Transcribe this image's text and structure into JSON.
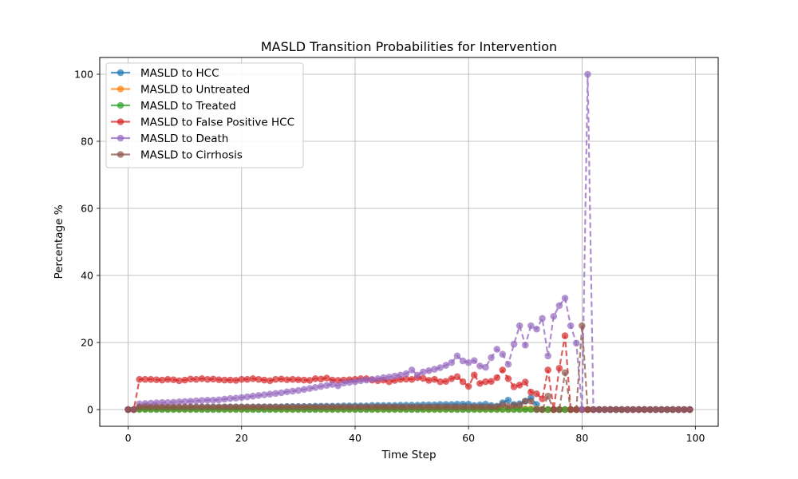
{
  "chart_data": {
    "type": "line",
    "title": "MASLD Transition Probabilities for Intervention",
    "xlabel": "Time Step",
    "ylabel": "Percentage %",
    "xlim": [
      -5,
      104
    ],
    "ylim": [
      -5,
      105
    ],
    "xticks": [
      0,
      20,
      40,
      60,
      80,
      100
    ],
    "yticks": [
      0,
      20,
      40,
      60,
      80,
      100
    ],
    "grid": true,
    "legend_position": "top-left",
    "x": [
      0,
      1,
      2,
      3,
      4,
      5,
      6,
      7,
      8,
      9,
      10,
      11,
      12,
      13,
      14,
      15,
      16,
      17,
      18,
      19,
      20,
      21,
      22,
      23,
      24,
      25,
      26,
      27,
      28,
      29,
      30,
      31,
      32,
      33,
      34,
      35,
      36,
      37,
      38,
      39,
      40,
      41,
      42,
      43,
      44,
      45,
      46,
      47,
      48,
      49,
      50,
      51,
      52,
      53,
      54,
      55,
      56,
      57,
      58,
      59,
      60,
      61,
      62,
      63,
      64,
      65,
      66,
      67,
      68,
      69,
      70,
      71,
      72,
      73,
      74,
      75,
      76,
      77,
      78,
      79,
      80,
      81,
      82,
      83,
      84,
      85,
      86,
      87,
      88,
      89,
      90,
      91,
      92,
      93,
      94,
      95,
      96,
      97,
      98,
      99
    ],
    "series": [
      {
        "name": "MASLD to HCC",
        "color": "#1f77b4",
        "values": [
          0,
          0,
          0.4,
          0.4,
          0.5,
          0.5,
          0.5,
          0.5,
          0.5,
          0.5,
          0.5,
          0.6,
          0.6,
          0.6,
          0.6,
          0.6,
          0.6,
          0.7,
          0.7,
          0.7,
          0.7,
          0.7,
          0.7,
          0.8,
          0.8,
          0.8,
          0.8,
          0.8,
          0.9,
          0.9,
          0.9,
          0.9,
          0.9,
          1.0,
          1.0,
          1.0,
          1.0,
          1.0,
          1.1,
          1.1,
          1.1,
          1.1,
          1.1,
          1.2,
          1.2,
          1.2,
          1.2,
          1.2,
          1.3,
          1.3,
          1.3,
          1.3,
          1.4,
          1.4,
          1.4,
          1.5,
          1.5,
          1.5,
          1.6,
          1.6,
          1.6,
          1.2,
          1.4,
          1.6,
          1.2,
          1.0,
          2.0,
          2.8,
          1.5,
          1.7,
          2.5,
          3.5,
          1.5,
          0,
          0,
          0,
          0,
          0,
          0,
          0,
          0,
          0,
          0,
          0,
          0,
          0,
          0,
          0,
          0,
          0,
          0,
          0,
          0,
          0,
          0,
          0,
          0,
          0,
          0,
          0
        ]
      },
      {
        "name": "MASLD to Untreated",
        "color": "#ff7f0e",
        "values": [
          0,
          0,
          0.2,
          0.2,
          0.2,
          0.2,
          0.2,
          0.2,
          0.2,
          0.2,
          0.2,
          0.2,
          0.2,
          0.2,
          0.2,
          0.2,
          0.2,
          0.2,
          0.2,
          0.2,
          0.2,
          0.2,
          0.2,
          0.2,
          0.2,
          0.2,
          0.2,
          0.2,
          0.2,
          0.2,
          0.2,
          0.2,
          0.2,
          0.2,
          0.2,
          0.2,
          0.2,
          0.2,
          0.2,
          0.2,
          0.2,
          0.2,
          0.2,
          0.2,
          0.2,
          0.2,
          0.2,
          0.2,
          0.2,
          0.2,
          0.2,
          0.2,
          0.2,
          0.2,
          0.2,
          0.2,
          0.2,
          0.2,
          0.2,
          0.2,
          0.2,
          0.2,
          0.2,
          0.2,
          0.2,
          0.2,
          0.2,
          0.2,
          0.2,
          0.2,
          0.2,
          0.2,
          0.2,
          0,
          0,
          0,
          0,
          0,
          0,
          0,
          0,
          0,
          0,
          0,
          0,
          0,
          0,
          0,
          0,
          0,
          0,
          0,
          0,
          0,
          0,
          0,
          0,
          0,
          0,
          0
        ]
      },
      {
        "name": "MASLD to Treated",
        "color": "#2ca02c",
        "values": [
          0,
          0,
          0,
          0,
          0,
          0,
          0,
          0,
          0,
          0,
          0,
          0,
          0,
          0,
          0,
          0,
          0,
          0,
          0,
          0,
          0,
          0,
          0,
          0,
          0,
          0,
          0,
          0,
          0,
          0,
          0,
          0,
          0,
          0,
          0,
          0,
          0,
          0,
          0,
          0,
          0,
          0,
          0,
          0,
          0,
          0,
          0,
          0,
          0,
          0,
          0,
          0,
          0,
          0,
          0,
          0,
          0,
          0,
          0,
          0,
          0,
          0,
          0,
          0,
          0,
          0,
          0,
          0,
          0,
          0,
          0,
          0,
          0,
          0,
          0,
          0,
          0,
          0,
          0,
          0,
          0,
          0,
          0,
          0,
          0,
          0,
          0,
          0,
          0,
          0,
          0,
          0,
          0,
          0,
          0,
          0,
          0,
          0,
          0,
          0
        ]
      },
      {
        "name": "MASLD to False Positive HCC",
        "color": "#d62728",
        "values": [
          0,
          0,
          9.0,
          9.0,
          9.0,
          8.9,
          8.8,
          9.0,
          8.9,
          8.6,
          8.8,
          9.1,
          9.0,
          9.2,
          9.0,
          9.1,
          8.9,
          8.8,
          8.8,
          8.7,
          9.0,
          9.0,
          9.2,
          9.0,
          8.8,
          8.6,
          9.0,
          9.1,
          8.9,
          9.0,
          8.9,
          8.8,
          8.7,
          9.2,
          9.1,
          9.4,
          8.8,
          8.7,
          8.8,
          8.9,
          9.0,
          9.2,
          9.2,
          8.8,
          8.6,
          8.8,
          8.3,
          8.7,
          9.0,
          9.1,
          9.0,
          9.5,
          9.3,
          8.7,
          9.0,
          8.3,
          8.4,
          9.2,
          9.8,
          8.3,
          6.9,
          10.3,
          7.8,
          8.3,
          8.4,
          9.5,
          11.8,
          9.2,
          6.8,
          7.3,
          8.2,
          5.2,
          4.7,
          3.2,
          11.8,
          0,
          12.3,
          22.0,
          0,
          0,
          0,
          0,
          0,
          0,
          0,
          0,
          0,
          0,
          0,
          0,
          0,
          0,
          0,
          0,
          0,
          0,
          0,
          0,
          0,
          0
        ]
      },
      {
        "name": "MASLD to Death",
        "color": "#9467bd",
        "values": [
          0,
          0,
          1.7,
          1.8,
          1.9,
          2.0,
          2.1,
          2.1,
          2.2,
          2.3,
          2.4,
          2.5,
          2.6,
          2.7,
          2.8,
          2.8,
          2.9,
          3.1,
          3.3,
          3.4,
          3.6,
          3.8,
          4.0,
          4.2,
          4.4,
          4.6,
          4.8,
          5.0,
          5.3,
          5.5,
          5.7,
          6.0,
          6.3,
          6.6,
          6.9,
          7.2,
          7.5,
          7.1,
          7.9,
          8.1,
          8.3,
          8.6,
          8.8,
          9.0,
          9.2,
          9.5,
          9.7,
          10.0,
          10.3,
          10.7,
          11.8,
          10.3,
          11.2,
          11.6,
          12.0,
          12.5,
          13.2,
          14.0,
          16.0,
          14.5,
          14.0,
          14.6,
          13.0,
          12.6,
          15.5,
          18.0,
          16.5,
          13.5,
          19.5,
          25.0,
          19.2,
          25.0,
          24.0,
          27.2,
          16.0,
          27.8,
          31.0,
          33.2,
          25.0,
          19.8,
          0,
          100,
          0,
          0,
          0,
          0,
          0,
          0,
          0,
          0,
          0,
          0,
          0,
          0,
          0,
          0,
          0,
          0,
          0,
          0
        ]
      },
      {
        "name": "MASLD to Cirrhosis",
        "color": "#8c564b",
        "values": [
          0,
          0,
          0.8,
          0.8,
          0.8,
          0.8,
          0.8,
          0.8,
          0.8,
          0.8,
          0.8,
          0.8,
          0.8,
          0.8,
          0.8,
          0.8,
          0.8,
          0.8,
          0.8,
          0.8,
          0.8,
          0.8,
          0.8,
          0.8,
          0.8,
          0.8,
          0.8,
          0.8,
          0.8,
          0.8,
          0.8,
          0.8,
          0.8,
          0.8,
          0.8,
          0.8,
          0.8,
          0.8,
          0.8,
          0.8,
          0.8,
          0.8,
          0.8,
          0.8,
          0.8,
          0.8,
          0.8,
          0.8,
          0.8,
          0.8,
          0.8,
          0.8,
          0.8,
          0.8,
          0.8,
          0.8,
          0.8,
          0.8,
          0.8,
          0.8,
          0.8,
          0.8,
          0.8,
          0.8,
          0.8,
          0.8,
          1.5,
          1.0,
          1.2,
          1.3,
          2.5,
          2.5,
          0,
          0,
          4.0,
          0,
          0,
          11.0,
          0,
          0,
          25.0,
          0,
          0,
          0,
          0,
          0,
          0,
          0,
          0,
          0,
          0,
          0,
          0,
          0,
          0,
          0,
          0,
          0,
          0,
          0
        ]
      }
    ]
  }
}
